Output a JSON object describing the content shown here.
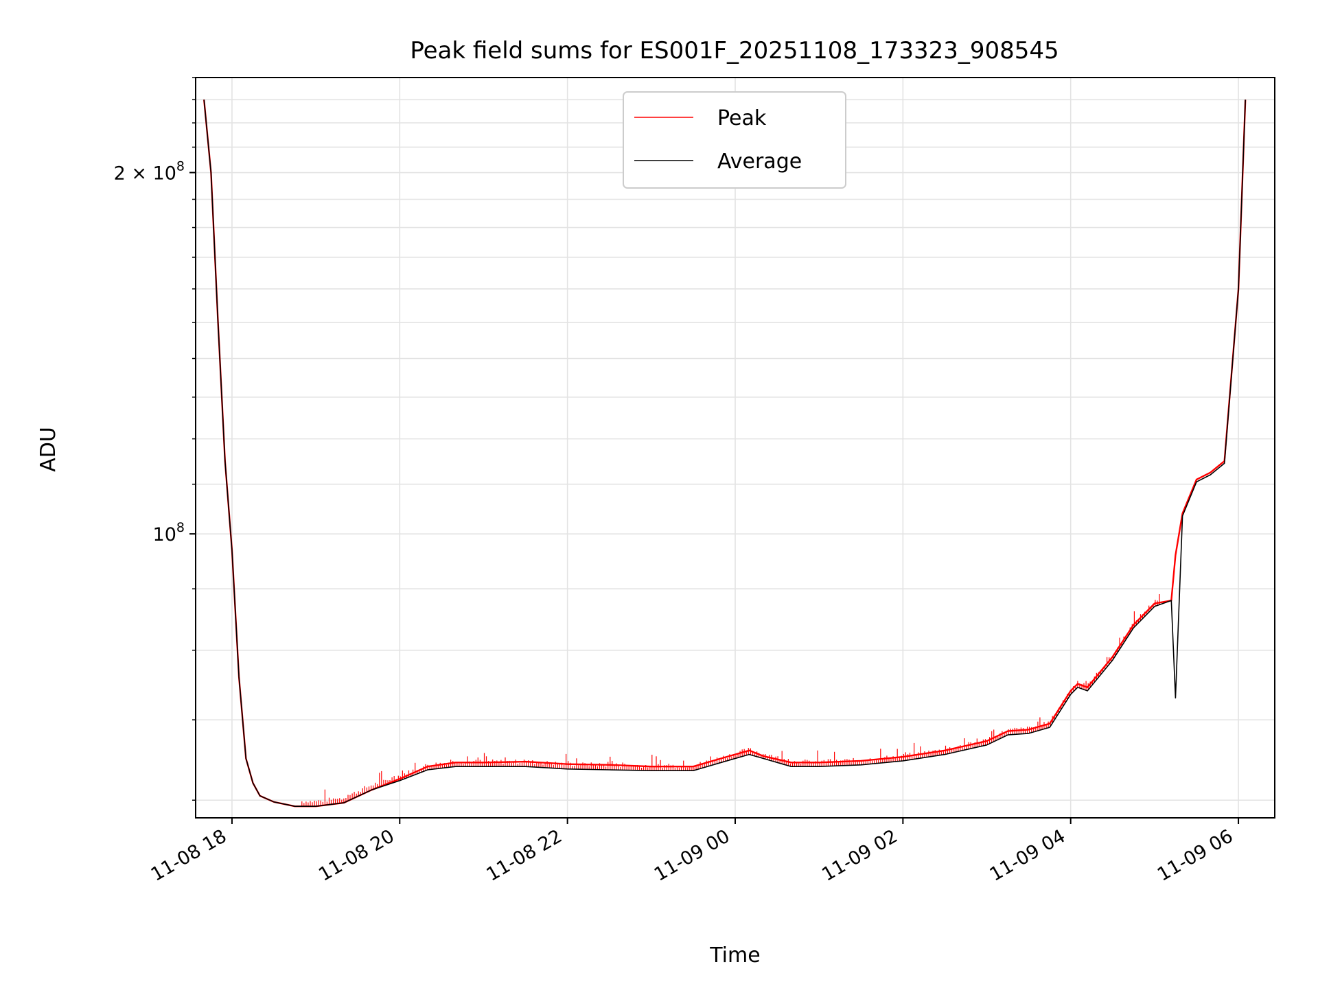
{
  "chart_data": {
    "type": "line",
    "title": "Peak field sums for ES001F_20251108_173323_908545",
    "xlabel": "Time",
    "ylabel": "ADU",
    "x_ticks": [
      "11-08 18",
      "11-08 20",
      "11-08 22",
      "11-09 00",
      "11-09 02",
      "11-09 04",
      "11-09 06"
    ],
    "y_ticks": [
      {
        "value": 100000000,
        "mantissa": "",
        "base": "10",
        "exp": "8"
      },
      {
        "value": 200000000,
        "mantissa": "2 × ",
        "base": "10",
        "exp": "8"
      }
    ],
    "y_scale": "log",
    "xlim": [
      "2025-11-08 17:34",
      "2025-11-09 06:26"
    ],
    "ylim": [
      58000000,
      240000000
    ],
    "grid": true,
    "legend": {
      "placement": "top-center"
    },
    "colors": {
      "peak": "#ff0000",
      "average": "#000000"
    },
    "series": [
      {
        "name": "Peak",
        "x": [
          "2025-11-08 17:40",
          "2025-11-08 17:45",
          "2025-11-08 17:50",
          "2025-11-08 17:55",
          "2025-11-08 18:00",
          "2025-11-08 18:05",
          "2025-11-08 18:10",
          "2025-11-08 18:15",
          "2025-11-08 18:20",
          "2025-11-08 18:30",
          "2025-11-08 18:45",
          "2025-11-08 19:00",
          "2025-11-08 19:20",
          "2025-11-08 19:40",
          "2025-11-08 20:00",
          "2025-11-08 20:20",
          "2025-11-08 20:40",
          "2025-11-08 21:00",
          "2025-11-08 21:30",
          "2025-11-08 22:00",
          "2025-11-08 22:30",
          "2025-11-08 23:00",
          "2025-11-08 23:30",
          "2025-11-08 23:50",
          "2025-11-09 00:10",
          "2025-11-09 00:20",
          "2025-11-09 00:40",
          "2025-11-09 01:00",
          "2025-11-09 01:30",
          "2025-11-09 02:00",
          "2025-11-09 02:30",
          "2025-11-09 03:00",
          "2025-11-09 03:15",
          "2025-11-09 03:30",
          "2025-11-09 03:45",
          "2025-11-09 04:00",
          "2025-11-09 04:05",
          "2025-11-09 04:12",
          "2025-11-09 04:30",
          "2025-11-09 04:45",
          "2025-11-09 05:00",
          "2025-11-09 05:12",
          "2025-11-09 05:15",
          "2025-11-09 05:20",
          "2025-11-09 05:30",
          "2025-11-09 05:40",
          "2025-11-09 05:50",
          "2025-11-09 06:00",
          "2025-11-09 06:05"
        ],
        "values": [
          230000000,
          200000000,
          150000000,
          115000000,
          97000000,
          76000000,
          65000000,
          62000000,
          60500000,
          59800000,
          59300000,
          59300000,
          59700000,
          61200000,
          62500000,
          64000000,
          64500000,
          64500000,
          64600000,
          64300000,
          64200000,
          64000000,
          64000000,
          65000000,
          66000000,
          65300000,
          64500000,
          64500000,
          64700000,
          65200000,
          66000000,
          67200000,
          68500000,
          68700000,
          69500000,
          74000000,
          75000000,
          74500000,
          79000000,
          84000000,
          87500000,
          88000000,
          96000000,
          104000000,
          111000000,
          112500000,
          115000000,
          160000000,
          230000000
        ]
      },
      {
        "name": "Average",
        "x": [
          "2025-11-08 17:40",
          "2025-11-08 17:45",
          "2025-11-08 17:50",
          "2025-11-08 17:55",
          "2025-11-08 18:00",
          "2025-11-08 18:05",
          "2025-11-08 18:10",
          "2025-11-08 18:15",
          "2025-11-08 18:20",
          "2025-11-08 18:30",
          "2025-11-08 18:45",
          "2025-11-08 19:00",
          "2025-11-08 19:20",
          "2025-11-08 19:40",
          "2025-11-08 20:00",
          "2025-11-08 20:20",
          "2025-11-08 20:40",
          "2025-11-08 21:00",
          "2025-11-08 21:30",
          "2025-11-08 22:00",
          "2025-11-08 22:30",
          "2025-11-08 23:00",
          "2025-11-08 23:30",
          "2025-11-08 23:50",
          "2025-11-09 00:10",
          "2025-11-09 00:20",
          "2025-11-09 00:40",
          "2025-11-09 01:00",
          "2025-11-09 01:30",
          "2025-11-09 02:00",
          "2025-11-09 02:30",
          "2025-11-09 03:00",
          "2025-11-09 03:15",
          "2025-11-09 03:30",
          "2025-11-09 03:45",
          "2025-11-09 04:00",
          "2025-11-09 04:05",
          "2025-11-09 04:12",
          "2025-11-09 04:30",
          "2025-11-09 04:45",
          "2025-11-09 05:00",
          "2025-11-09 05:12",
          "2025-11-09 05:15",
          "2025-11-09 05:20",
          "2025-11-09 05:30",
          "2025-11-09 05:40",
          "2025-11-09 05:50",
          "2025-11-09 06:00",
          "2025-11-09 06:05"
        ],
        "values": [
          230000000,
          200000000,
          150000000,
          115000000,
          97000000,
          76000000,
          65000000,
          62000000,
          60500000,
          59800000,
          59300000,
          59300000,
          59700000,
          61200000,
          62300000,
          63600000,
          64000000,
          64000000,
          64000000,
          63700000,
          63600000,
          63500000,
          63500000,
          64500000,
          65500000,
          65000000,
          64000000,
          64000000,
          64200000,
          64700000,
          65500000,
          66700000,
          68000000,
          68200000,
          69000000,
          73500000,
          74500000,
          74000000,
          78500000,
          83500000,
          87000000,
          88000000,
          73000000,
          103500000,
          110500000,
          112000000,
          114500000,
          160000000,
          230000000
        ]
      }
    ]
  }
}
